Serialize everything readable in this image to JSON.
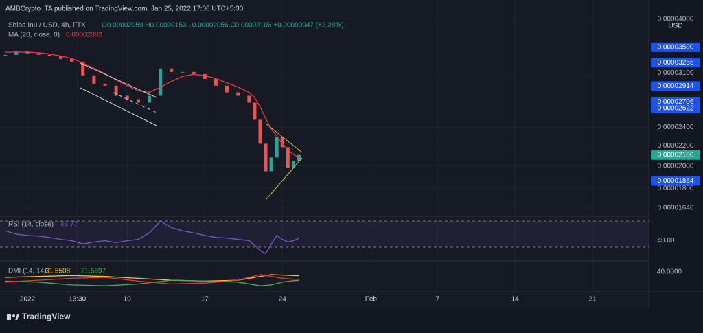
{
  "header": {
    "publisher": "AMBCrypto_TA published on TradingView.com, Jan 25, 2022 17:06 UTC+5:30"
  },
  "legend": {
    "symbol": "Shiba Inu / USD, 4h, FTX",
    "ohlc": "O0.00002059 H0.00002153 L0.00002056 C0.00002106 +0.00000047 (+2.28%)"
  },
  "chart_data": {
    "type": "candlestick",
    "currency": "USD",
    "log_scale": true,
    "grid": true,
    "up_color": "#26a69a",
    "down_color": "#ef5350",
    "x": [
      -1,
      0,
      1,
      2,
      3,
      4,
      5,
      6,
      7,
      8,
      9,
      10,
      11,
      12,
      13,
      14,
      15,
      16,
      17,
      18,
      19,
      20,
      21,
      21.5,
      22,
      22.5,
      23,
      23.5,
      24,
      24.5,
      25,
      25.5
    ],
    "close": [
      3.377e-05,
      3.433e-05,
      3.4e-05,
      3.378e-05,
      3.356e-05,
      3.312e-05,
      3.27e-05,
      3.065e-05,
      2.948e-05,
      2.92e-05,
      2.784e-05,
      2.739e-05,
      2.695e-05,
      2.784e-05,
      3.166e-05,
      3.115e-05,
      3.115e-05,
      3.085e-05,
      3.015e-05,
      2.92e-05,
      2.829e-05,
      2.784e-05,
      2.695e-05,
      2.487e-05,
      2.22e-05,
      1.95e-05,
      2.081e-05,
      2.29e-05,
      2.185e-05,
      1.982e-05,
      2.047e-05,
      2.106e-05
    ],
    "ma": {
      "label": "MA (20, close, 0)",
      "value_label": "0.00002082",
      "color": "#f23645",
      "values": [
        3.42e-05,
        3.42e-05,
        3.42e-05,
        3.41e-05,
        3.39e-05,
        3.36e-05,
        3.32e-05,
        3.25e-05,
        3.17e-05,
        3.09e-05,
        3e-05,
        2.92e-05,
        2.85e-05,
        2.83e-05,
        2.9e-05,
        2.98e-05,
        3.05e-05,
        3.08e-05,
        3.06e-05,
        3.02e-05,
        2.96e-05,
        2.9e-05,
        2.83e-05,
        2.76e-05,
        2.64e-05,
        2.5e-05,
        2.38e-05,
        2.3e-05,
        2.22e-05,
        2.16e-05,
        2.11e-05,
        2.082e-05
      ]
    },
    "ylim": [
      1.577e-05,
      4.1e-05
    ],
    "yticks": [
      {
        "value": 4e-05,
        "label": "0.00004000"
      },
      {
        "value": 3.1e-05,
        "label": "0.00003100"
      },
      {
        "value": 2.4e-05,
        "label": "0.00002400"
      },
      {
        "value": 2.2e-05,
        "label": "0.00002200"
      },
      {
        "value": 2e-05,
        "label": "0.00002000"
      },
      {
        "value": 1.8e-05,
        "label": "0.00001800"
      },
      {
        "value": 1.64e-05,
        "label": "0.00001640"
      }
    ],
    "price_labels": [
      {
        "value": 3.5e-05,
        "label": "0.00003500",
        "color": "#1e53e5"
      },
      {
        "value": 3.255e-05,
        "label": "0.00003255",
        "color": "#1e53e5"
      },
      {
        "value": 2.914e-05,
        "label": "0.00002914",
        "color": "#1e53e5"
      },
      {
        "value": 2.706e-05,
        "label": "0.00002706",
        "color": "#1e53e5"
      },
      {
        "value": 2.622e-05,
        "label": "0.00002622",
        "color": "#1e53e5"
      },
      {
        "value": 2.106e-05,
        "label": "0.00002106",
        "color": "#22ab94"
      },
      {
        "value": 1.864e-05,
        "label": "0.00001864",
        "color": "#1e53e5"
      }
    ],
    "xlim": [
      -1.48,
      57.07
    ],
    "xticks": [
      {
        "value": 1,
        "label": "2022"
      },
      {
        "value": 5.5,
        "label": "13:30"
      },
      {
        "value": 10,
        "label": "10"
      },
      {
        "value": 17,
        "label": "17"
      },
      {
        "value": 24,
        "label": "24"
      },
      {
        "value": 32,
        "label": "Feb"
      },
      {
        "value": 38,
        "label": "7"
      },
      {
        "value": 45,
        "label": "14"
      },
      {
        "value": 52,
        "label": "21"
      }
    ]
  },
  "rsi": {
    "label": "RSI (14, close)",
    "value_label": "43.77",
    "color": "#7e57c2",
    "ylim": [
      9,
      77.4
    ],
    "band": [
      30,
      70
    ],
    "yticks": [
      {
        "value": 40,
        "label": "40.00"
      }
    ],
    "values": [
      55,
      50,
      48,
      47,
      45,
      42,
      40,
      35,
      38,
      40,
      37,
      40,
      42,
      52,
      70,
      60,
      55,
      52,
      48,
      45,
      44,
      42,
      40,
      33,
      25,
      20,
      35,
      48,
      42,
      38,
      40,
      43.77
    ]
  },
  "dmi": {
    "label": "DMI (14, 14)",
    "ylim": [
      0,
      59
    ],
    "yticks": [
      {
        "value": 40,
        "label": "40.0000"
      }
    ],
    "x": [
      -1,
      2,
      5,
      8,
      11,
      14,
      17,
      20,
      22,
      23,
      24,
      25,
      25.5
    ],
    "series": [
      {
        "value_label": "31.5508",
        "color": "#f7c325",
        "values": [
          28,
          30,
          32,
          30,
          26,
          22,
          20,
          22,
          30,
          34,
          33,
          32,
          31.5508
        ]
      },
      {
        "value_label": "21.5897",
        "color": "#4caf50",
        "values": [
          20,
          18,
          12,
          10,
          14,
          22,
          20,
          18,
          10,
          12,
          18,
          21,
          21.5897
        ]
      },
      {
        "color": "#f23645",
        "values": [
          18,
          22,
          26,
          28,
          20,
          14,
          16,
          22,
          34,
          30,
          26,
          24,
          24
        ]
      }
    ]
  },
  "footer": {
    "brand": "TradingView"
  }
}
